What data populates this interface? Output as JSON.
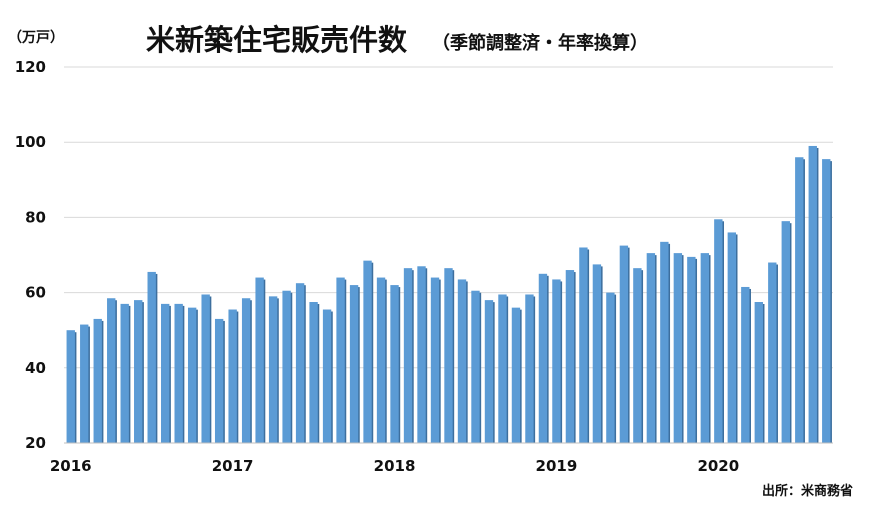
{
  "chart_data": {
    "type": "bar",
    "title": "米新築住宅販売件数",
    "subtitle": "（季節調整済・年率換算）",
    "ylabel": "（万戸）",
    "source": "出所：米商務省",
    "ylim": [
      20,
      120
    ],
    "yticks": [
      20,
      40,
      60,
      80,
      100,
      120
    ],
    "year_labels": [
      "2016",
      "2017",
      "2018",
      "2019",
      "2020"
    ],
    "bar_color": "#5b9bd5",
    "bar_shadow_color": "#3d6f9e",
    "grid": true,
    "series": [
      {
        "values": [
          50.0,
          51.5,
          53.0,
          58.5,
          57.0,
          58.0,
          65.5,
          57.0,
          57.0,
          56.0,
          59.5,
          53.0,
          55.5,
          58.5,
          64.0,
          59.0,
          60.5,
          62.5,
          57.5,
          55.5,
          64.0,
          62.0,
          68.5,
          64.0,
          62.0,
          66.5,
          67.0,
          64.0,
          66.5,
          63.5,
          60.5,
          58.0,
          59.5,
          56.0,
          59.5,
          65.0,
          63.5,
          66.0,
          72.0,
          67.5,
          60.0,
          72.5,
          66.5,
          70.5,
          73.5,
          70.5,
          69.5,
          70.5,
          79.5,
          76.0,
          61.5,
          57.5,
          68.0,
          79.0,
          96.0,
          99.0,
          95.5
        ]
      }
    ]
  }
}
